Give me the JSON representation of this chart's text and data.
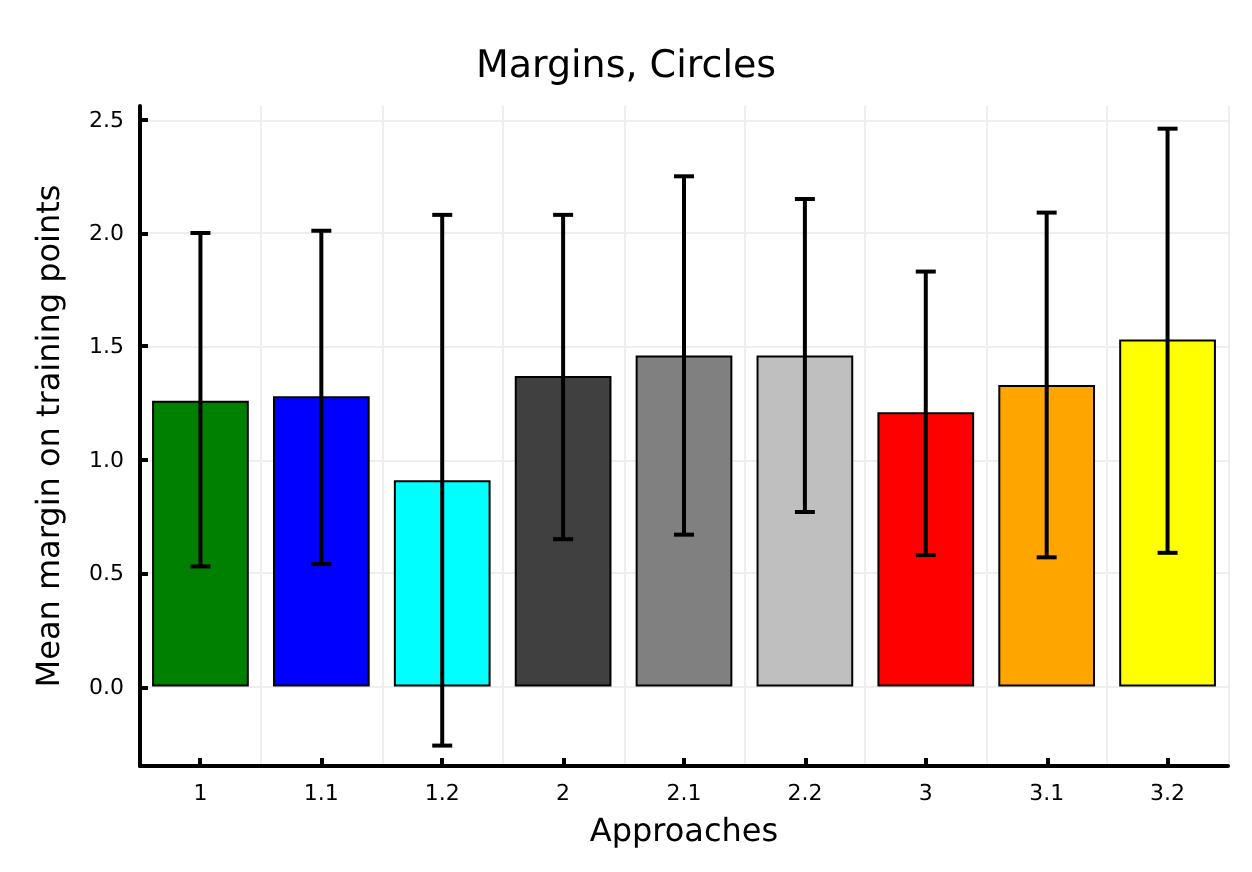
{
  "chart_data": {
    "type": "bar",
    "title": "Margins, Circles",
    "xlabel": "Approaches",
    "ylabel": "Mean margin on training points",
    "categories": [
      "1",
      "1.1",
      "1.2",
      "2",
      "2.1",
      "2.2",
      "3",
      "3.1",
      "3.2"
    ],
    "values": [
      1.26,
      1.28,
      0.91,
      1.37,
      1.46,
      1.46,
      1.21,
      1.33,
      1.53
    ],
    "colors": [
      "#008000",
      "#0000ff",
      "#00ffff",
      "#404040",
      "#808080",
      "#bfbfbf",
      "#ff0000",
      "#ffa500",
      "#ffff00"
    ],
    "errors": [
      [
        0.53,
        2.0
      ],
      [
        0.54,
        2.01
      ],
      [
        -0.26,
        2.08
      ],
      [
        0.65,
        2.08
      ],
      [
        0.67,
        2.25
      ],
      [
        0.77,
        2.15
      ],
      [
        0.58,
        1.83
      ],
      [
        0.57,
        2.09
      ],
      [
        0.59,
        2.46
      ]
    ],
    "ylim": [
      -0.35,
      2.56
    ],
    "yticks": [
      {
        "value": 0,
        "label": "0.0"
      },
      {
        "value": 0.5,
        "label": "0.5"
      },
      {
        "value": 1,
        "label": "1.0"
      },
      {
        "value": 1.5,
        "label": "1.5"
      },
      {
        "value": 2,
        "label": "2.0"
      },
      {
        "value": 2.5,
        "label": "2.5"
      }
    ],
    "grid": true
  }
}
